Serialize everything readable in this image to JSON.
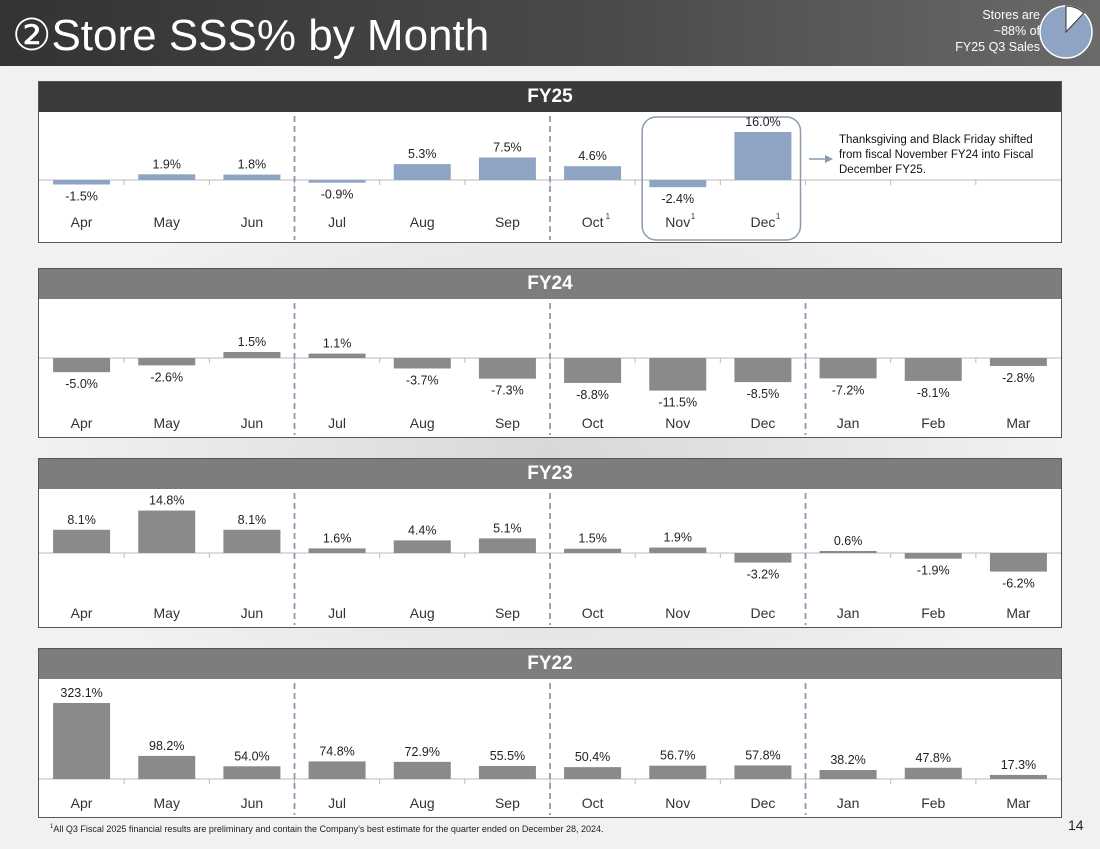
{
  "header": {
    "title": "②Store SSS% by Month",
    "stores_note_lines": [
      "Stores are",
      "~88% of",
      "FY25 Q3 Sales"
    ],
    "stores_share": 0.88
  },
  "footnote": {
    "marker": "1",
    "text": "All Q3 Fiscal 2025 financial results are preliminary and contain the Company’s best estimate for the quarter ended on December 28, 2024."
  },
  "page_number": "14",
  "colors": {
    "fy25_header": "#3b3b3b",
    "other_header": "#7d7d7d",
    "fy25_bar": "#8ea4c2",
    "other_bar": "#8a8a8a",
    "divider": "#8a9ab0",
    "highlight": "#8a9ab0"
  },
  "chart_data": [
    {
      "type": "bar",
      "title": "FY25",
      "categories": [
        "Apr",
        "May",
        "Jun",
        "Jul",
        "Aug",
        "Sep",
        "Oct",
        "Nov",
        "Dec",
        "",
        "",
        ""
      ],
      "footnote_marks": [
        "",
        "",
        "",
        "",
        "",
        "",
        "1",
        "1",
        "1",
        "",
        "",
        ""
      ],
      "values": [
        -1.5,
        1.9,
        1.8,
        -0.9,
        5.3,
        7.5,
        4.6,
        -2.4,
        16.0,
        null,
        null,
        null
      ],
      "labels": [
        "-1.5%",
        "1.9%",
        "1.8%",
        "-0.9%",
        "5.3%",
        "7.5%",
        "4.6%",
        "-2.4%",
        "16.0%",
        "",
        "",
        ""
      ],
      "ylim": [
        -4,
        16
      ],
      "quarter_dividers_after": [
        3,
        6
      ],
      "highlight": [
        7,
        8
      ],
      "annotation": {
        "lines": [
          "Thanksgiving and Black Friday shifted",
          "from fiscal November FY24 into Fiscal",
          "December FY25."
        ]
      }
    },
    {
      "type": "bar",
      "title": "FY24",
      "categories": [
        "Apr",
        "May",
        "Jun",
        "Jul",
        "Aug",
        "Sep",
        "Oct",
        "Nov",
        "Dec",
        "Jan",
        "Feb",
        "Mar"
      ],
      "values": [
        -5.0,
        -2.6,
        1.5,
        1.1,
        -3.7,
        -7.3,
        -8.8,
        -11.5,
        -8.5,
        -7.2,
        -8.1,
        -2.8
      ],
      "labels": [
        "-5.0%",
        "-2.6%",
        "1.5%",
        "1.1%",
        "-3.7%",
        "-7.3%",
        "-8.8%",
        "-11.5%",
        "-8.5%",
        "-7.2%",
        "-8.1%",
        "-2.8%"
      ],
      "ylim": [
        -12,
        3
      ],
      "quarter_dividers_after": [
        3,
        6,
        9
      ]
    },
    {
      "type": "bar",
      "title": "FY23",
      "categories": [
        "Apr",
        "May",
        "Jun",
        "Jul",
        "Aug",
        "Sep",
        "Oct",
        "Nov",
        "Dec",
        "Jan",
        "Feb",
        "Mar"
      ],
      "values": [
        8.1,
        14.8,
        8.1,
        1.6,
        4.4,
        5.1,
        1.5,
        1.9,
        -3.2,
        0.6,
        -1.9,
        -6.2
      ],
      "labels": [
        "8.1%",
        "14.8%",
        "8.1%",
        "1.6%",
        "4.4%",
        "5.1%",
        "1.5%",
        "1.9%",
        "-3.2%",
        "0.6%",
        "-1.9%",
        "-6.2%"
      ],
      "ylim": [
        -7,
        15
      ],
      "quarter_dividers_after": [
        3,
        6,
        9
      ]
    },
    {
      "type": "bar",
      "title": "FY22",
      "categories": [
        "Apr",
        "May",
        "Jun",
        "Jul",
        "Aug",
        "Sep",
        "Oct",
        "Nov",
        "Dec",
        "Jan",
        "Feb",
        "Mar"
      ],
      "values": [
        323.1,
        98.2,
        54.0,
        74.8,
        72.9,
        55.5,
        50.4,
        56.7,
        57.8,
        38.2,
        47.8,
        17.3
      ],
      "labels": [
        "323.1%",
        "98.2%",
        "54.0%",
        "74.8%",
        "72.9%",
        "55.5%",
        "50.4%",
        "56.7%",
        "57.8%",
        "38.2%",
        "47.8%",
        "17.3%"
      ],
      "ylim": [
        0,
        323.1
      ],
      "quarter_dividers_after": [
        3,
        6,
        9
      ]
    }
  ]
}
